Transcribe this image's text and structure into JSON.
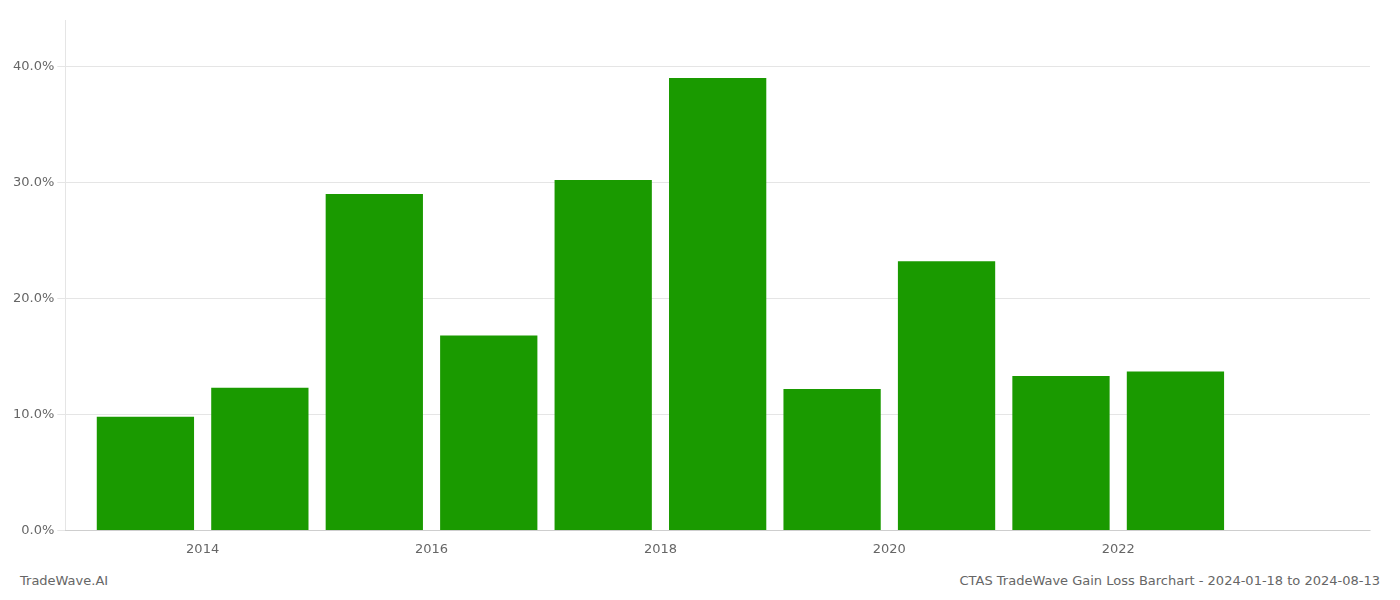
{
  "chart_data": {
    "type": "bar",
    "x": [
      2014,
      2015,
      2016,
      2017,
      2018,
      2019,
      2020,
      2021,
      2022,
      2023
    ],
    "values": [
      0.098,
      0.123,
      0.29,
      0.168,
      0.302,
      0.39,
      0.122,
      0.232,
      0.133,
      0.137
    ],
    "color": "#1a9a00",
    "xlim": [
      2013.3,
      2024.7
    ],
    "xticks": [
      {
        "value": 2014.5,
        "label": "2014"
      },
      {
        "value": 2016.5,
        "label": "2016"
      },
      {
        "value": 2018.5,
        "label": "2018"
      },
      {
        "value": 2020.5,
        "label": "2020"
      },
      {
        "value": 2022.5,
        "label": "2022"
      }
    ],
    "ylim": [
      0,
      0.44
    ],
    "yticks": [
      {
        "value": 0.0,
        "label": "0.0%"
      },
      {
        "value": 0.1,
        "label": "10.0%"
      },
      {
        "value": 0.2,
        "label": "20.0%"
      },
      {
        "value": 0.3,
        "label": "30.0%"
      },
      {
        "value": 0.4,
        "label": "40.0%"
      }
    ],
    "grid": "y",
    "annotations": [
      "TradeWave.AI",
      "CTAS TradeWave Gain Loss Barchart - 2024-01-18 to 2024-08-13"
    ]
  }
}
